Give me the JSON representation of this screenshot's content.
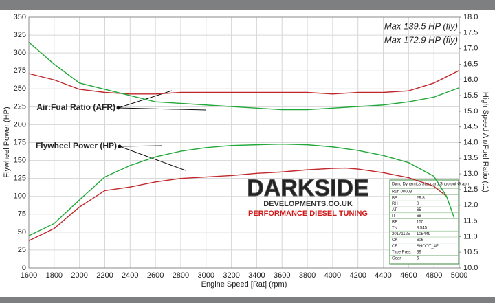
{
  "chart_data": {
    "type": "line",
    "x_label": "Engine Speed [Rat] (rpm)",
    "y_label": "Flywheel Power (HP)",
    "y2_label": "High Speed Air/Fuel Ratio (:1)",
    "xlim": [
      1600,
      5000
    ],
    "xticks": [
      1600,
      1800,
      2000,
      2200,
      2400,
      2600,
      2800,
      3000,
      3200,
      3400,
      3600,
      3800,
      4000,
      4200,
      4400,
      4600,
      4800,
      5000
    ],
    "ylim": [
      0,
      350
    ],
    "yticks": [
      0,
      25,
      50,
      75,
      100,
      125,
      150,
      175,
      200,
      225,
      250,
      275,
      300,
      325,
      350
    ],
    "y2lim": [
      10,
      18
    ],
    "y2ticks": [
      {
        "value": 10,
        "label": "10.0"
      },
      10.5,
      {
        "value": 11,
        "label": "11.0"
      },
      11.5,
      {
        "value": 12,
        "label": "12.0"
      },
      12.5,
      {
        "value": 13,
        "label": "13.0"
      },
      13.5,
      {
        "value": 14,
        "label": "14.0"
      },
      14.5,
      {
        "value": 15,
        "label": "15.0"
      },
      15.5,
      {
        "value": 16,
        "label": "16.0"
      },
      16.5,
      {
        "value": 17,
        "label": "17.0"
      },
      17.5,
      {
        "value": 18,
        "label": "18.0"
      }
    ],
    "grid": true,
    "legend": "top-right",
    "series": [
      {
        "name": "Max 139.5 HP (fly)",
        "color": "#c0282c",
        "x": [
          1600,
          1800,
          2000,
          2200,
          2400,
          2600,
          2800,
          3000,
          3200,
          3400,
          3600,
          3800,
          4000,
          4100,
          4200,
          4400,
          4600,
          4800,
          4900
        ],
        "values": [
          38,
          55,
          85,
          108,
          113,
          120,
          125,
          127,
          129,
          132,
          134,
          137,
          139,
          139.5,
          138,
          133,
          126,
          114,
          100
        ]
      },
      {
        "name": "Max 172.9 HP (fly)",
        "color": "#22a83a",
        "x": [
          1600,
          1800,
          2000,
          2200,
          2400,
          2600,
          2800,
          3000,
          3200,
          3400,
          3600,
          3800,
          4000,
          4200,
          4400,
          4600,
          4800,
          4900,
          4960
        ],
        "values": [
          45,
          62,
          95,
          127,
          143,
          155,
          163,
          168,
          171,
          172,
          172.9,
          172,
          169,
          164,
          157,
          147,
          128,
          100,
          70
        ]
      },
      {
        "color": "#c0282c",
        "axis": "y2",
        "x": [
          1600,
          1800,
          2000,
          2200,
          2400,
          2600,
          2800,
          3000,
          3200,
          3400,
          3600,
          3800,
          4000,
          4200,
          4400,
          4600,
          4800,
          5000
        ],
        "values": [
          16.2,
          16.0,
          15.7,
          15.6,
          15.55,
          15.55,
          15.6,
          15.6,
          15.6,
          15.6,
          15.6,
          15.6,
          15.55,
          15.6,
          15.6,
          15.65,
          15.9,
          16.3
        ]
      },
      {
        "color": "#22a83a",
        "axis": "y2",
        "x": [
          1600,
          1800,
          2000,
          2200,
          2400,
          2600,
          2800,
          3000,
          3200,
          3400,
          3600,
          3800,
          4000,
          4200,
          4400,
          4600,
          4800,
          5000
        ],
        "values": [
          17.2,
          16.5,
          15.9,
          15.7,
          15.5,
          15.3,
          15.25,
          15.2,
          15.15,
          15.1,
          15.05,
          15.05,
          15.1,
          15.15,
          15.2,
          15.3,
          15.45,
          15.75
        ]
      }
    ],
    "annotations": [
      "Air:Fual Ratio (AFR)",
      "Flywheel Power (HP)"
    ]
  },
  "logo": {
    "name": "DARKSIDE",
    "site": "DEVELOPMENTS.CO.UK",
    "tagline": "PERFORMANCE DIESEL TUNING"
  },
  "info_panel": {
    "title": "Dyno Dynamics Standard Shootout Graph",
    "rows": [
      [
        "Run 00003",
        ""
      ],
      [
        "BP",
        "29.8"
      ],
      [
        "RH",
        "0"
      ],
      [
        "AT",
        "65"
      ],
      [
        "IT",
        "68"
      ],
      [
        "RR",
        "150"
      ],
      [
        "TN",
        "3.545"
      ],
      [
        "20171125",
        "105449"
      ],
      [
        "CK",
        "606"
      ],
      [
        "CF",
        "SHOOT_4F"
      ],
      [
        "Type Pres.",
        "39"
      ],
      [
        "Gear",
        "6"
      ]
    ]
  }
}
